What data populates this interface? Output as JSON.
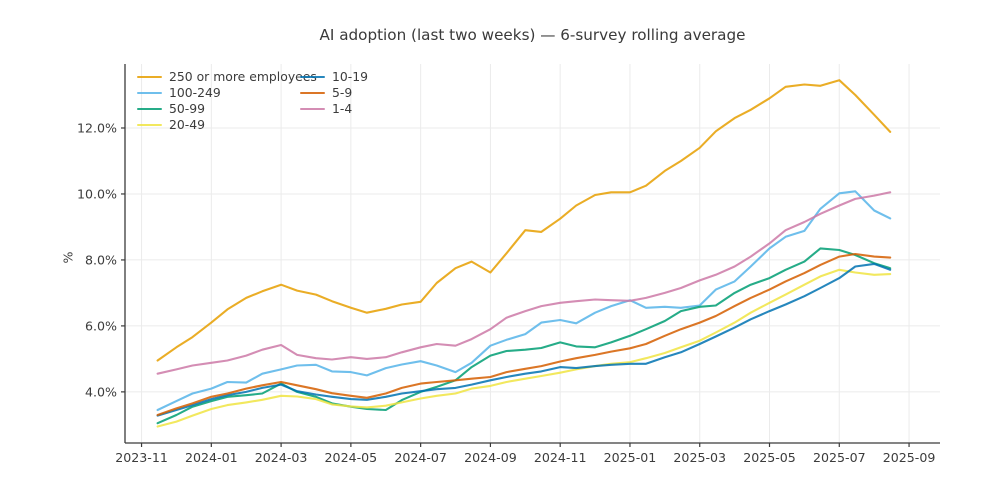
{
  "chart_data": {
    "type": "line",
    "title": "AI adoption (last two weeks) — 6-survey rolling average",
    "xlabel": "",
    "ylabel": "%",
    "grid": true,
    "legend": {
      "position": "upper left",
      "column_split": 4
    },
    "xlim": [
      "2023-10-17",
      "2025-09-28"
    ],
    "ylim": [
      2.45,
      13.94
    ],
    "y_tick_values": [
      4,
      6,
      8,
      10,
      12
    ],
    "y_tick_labels": [
      "4.0%",
      "6.0%",
      "8.0%",
      "10.0%",
      "12.0%"
    ],
    "x_tick_labels": [
      "2023-11",
      "2024-01",
      "2024-03",
      "2024-05",
      "2024-07",
      "2024-09",
      "2024-11",
      "2025-01",
      "2025-03",
      "2025-05",
      "2025-07",
      "2025-09"
    ],
    "x": [
      "2023-11-15",
      "2023-12-01",
      "2023-12-15",
      "2024-01-01",
      "2024-01-15",
      "2024-02-01",
      "2024-02-15",
      "2024-03-01",
      "2024-03-15",
      "2024-04-01",
      "2024-04-15",
      "2024-05-01",
      "2024-05-15",
      "2024-06-01",
      "2024-06-15",
      "2024-07-01",
      "2024-07-15",
      "2024-08-01",
      "2024-08-15",
      "2024-09-01",
      "2024-09-15",
      "2024-10-01",
      "2024-10-15",
      "2024-11-01",
      "2024-11-15",
      "2024-12-01",
      "2024-12-15",
      "2025-01-01",
      "2025-01-15",
      "2025-02-01",
      "2025-02-15",
      "2025-03-01",
      "2025-03-15",
      "2025-04-01",
      "2025-04-15",
      "2025-05-01",
      "2025-05-15",
      "2025-06-01",
      "2025-06-15",
      "2025-07-01",
      "2025-07-15",
      "2025-08-01",
      "2025-08-15"
    ],
    "series": [
      {
        "name": "250 or more employees",
        "color": "#E69F00",
        "values": [
          4.95,
          5.35,
          5.66,
          6.1,
          6.5,
          6.85,
          7.05,
          7.25,
          7.07,
          6.95,
          6.75,
          6.55,
          6.4,
          6.52,
          6.65,
          6.73,
          7.3,
          7.75,
          7.95,
          7.62,
          8.2,
          8.9,
          8.85,
          9.25,
          9.65,
          9.97,
          10.05,
          10.05,
          10.25,
          10.7,
          11.0,
          11.4,
          11.9,
          12.3,
          12.55,
          12.9,
          13.25,
          13.32,
          13.28,
          13.45,
          13.0,
          12.4,
          11.88
        ]
      },
      {
        "name": "100-249",
        "color": "#56B4E9",
        "values": [
          3.45,
          3.72,
          3.95,
          4.1,
          4.3,
          4.28,
          4.55,
          4.68,
          4.8,
          4.82,
          4.62,
          4.6,
          4.5,
          4.72,
          4.83,
          4.93,
          4.8,
          4.6,
          4.88,
          5.4,
          5.58,
          5.75,
          6.1,
          6.18,
          6.08,
          6.4,
          6.6,
          6.78,
          6.55,
          6.58,
          6.55,
          6.62,
          7.1,
          7.35,
          7.8,
          8.35,
          8.7,
          8.88,
          9.55,
          10.02,
          10.08,
          9.5,
          9.26
        ]
      },
      {
        "name": "50-99",
        "color": "#009E73",
        "values": [
          3.05,
          3.3,
          3.55,
          3.72,
          3.85,
          3.9,
          3.95,
          4.25,
          4.0,
          3.85,
          3.65,
          3.55,
          3.48,
          3.45,
          3.75,
          4.0,
          4.15,
          4.35,
          4.75,
          5.1,
          5.24,
          5.28,
          5.33,
          5.5,
          5.38,
          5.35,
          5.5,
          5.7,
          5.9,
          6.15,
          6.45,
          6.58,
          6.62,
          7.0,
          7.25,
          7.45,
          7.7,
          7.95,
          8.35,
          8.3,
          8.15,
          7.9,
          7.75
        ]
      },
      {
        "name": "20-49",
        "color": "#F0E442",
        "values": [
          2.95,
          3.1,
          3.28,
          3.48,
          3.6,
          3.68,
          3.76,
          3.88,
          3.86,
          3.78,
          3.62,
          3.56,
          3.53,
          3.58,
          3.68,
          3.8,
          3.88,
          3.95,
          4.1,
          4.18,
          4.3,
          4.4,
          4.48,
          4.58,
          4.68,
          4.78,
          4.85,
          4.9,
          5.02,
          5.18,
          5.35,
          5.55,
          5.8,
          6.1,
          6.4,
          6.7,
          6.95,
          7.25,
          7.5,
          7.7,
          7.62,
          7.55,
          7.57
        ]
      },
      {
        "name": "10-19",
        "color": "#0072B2",
        "values": [
          3.28,
          3.45,
          3.6,
          3.78,
          3.9,
          4.0,
          4.12,
          4.22,
          4.02,
          3.92,
          3.85,
          3.78,
          3.76,
          3.85,
          3.95,
          4.02,
          4.08,
          4.12,
          4.22,
          4.35,
          4.45,
          4.55,
          4.62,
          4.75,
          4.72,
          4.78,
          4.82,
          4.85,
          4.85,
          5.05,
          5.2,
          5.45,
          5.68,
          5.95,
          6.2,
          6.45,
          6.65,
          6.9,
          7.15,
          7.45,
          7.8,
          7.88,
          7.7
        ]
      },
      {
        "name": "5-9",
        "color": "#D55E00",
        "values": [
          3.3,
          3.5,
          3.65,
          3.85,
          3.95,
          4.1,
          4.2,
          4.3,
          4.2,
          4.08,
          3.96,
          3.88,
          3.82,
          3.95,
          4.12,
          4.25,
          4.3,
          4.35,
          4.4,
          4.45,
          4.6,
          4.7,
          4.78,
          4.92,
          5.02,
          5.12,
          5.22,
          5.32,
          5.45,
          5.7,
          5.9,
          6.1,
          6.3,
          6.6,
          6.85,
          7.1,
          7.35,
          7.6,
          7.85,
          8.1,
          8.18,
          8.1,
          8.07
        ]
      },
      {
        "name": "1-4",
        "color": "#CC79A7",
        "values": [
          4.55,
          4.68,
          4.8,
          4.88,
          4.95,
          5.1,
          5.28,
          5.42,
          5.12,
          5.02,
          4.98,
          5.05,
          5.0,
          5.05,
          5.2,
          5.35,
          5.45,
          5.4,
          5.6,
          5.9,
          6.25,
          6.45,
          6.6,
          6.7,
          6.75,
          6.8,
          6.78,
          6.76,
          6.85,
          7.0,
          7.15,
          7.38,
          7.55,
          7.8,
          8.1,
          8.5,
          8.9,
          9.15,
          9.4,
          9.65,
          9.85,
          9.95,
          10.05
        ]
      }
    ]
  }
}
